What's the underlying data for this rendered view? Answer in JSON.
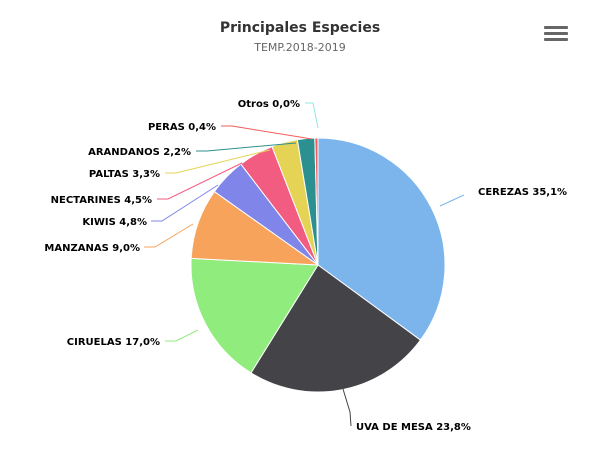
{
  "chart_data": {
    "type": "pie",
    "title": "Principales Especies",
    "subtitle": "TEMP.2018-2019",
    "slices": [
      {
        "name": "CEREZAS",
        "value": 35.1,
        "label": "CEREZAS 35,1%",
        "color": "#7cb5ec"
      },
      {
        "name": "UVA DE MESA",
        "value": 23.8,
        "label": "UVA DE MESA 23,8%",
        "color": "#434348"
      },
      {
        "name": "CIRUELAS",
        "value": 17.0,
        "label": "CIRUELAS 17,0%",
        "color": "#90ed7d"
      },
      {
        "name": "MANZANAS",
        "value": 9.0,
        "label": "MANZANAS 9,0%",
        "color": "#f7a35c"
      },
      {
        "name": "KIWIS",
        "value": 4.8,
        "label": "KIWIS 4,8%",
        "color": "#8085e9"
      },
      {
        "name": "NECTARINES",
        "value": 4.5,
        "label": "NECTARINES 4,5%",
        "color": "#f15c80"
      },
      {
        "name": "PALTAS",
        "value": 3.3,
        "label": "PALTAS 3,3%",
        "color": "#e4d354"
      },
      {
        "name": "ARANDANOS",
        "value": 2.2,
        "label": "ARANDANOS 2,2%",
        "color": "#2b908f"
      },
      {
        "name": "PERAS",
        "value": 0.4,
        "label": "PERAS 0,4%",
        "color": "#f45b5b"
      },
      {
        "name": "Otros",
        "value": 0.0,
        "label": "Otros 0,0%",
        "color": "#91e8e1"
      }
    ]
  },
  "menu": {
    "icon": "hamburger-menu-icon"
  }
}
